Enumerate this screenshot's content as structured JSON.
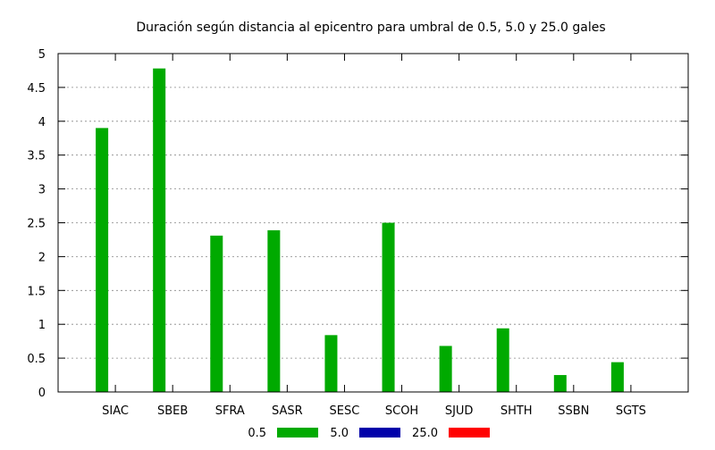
{
  "chart_data": {
    "type": "bar",
    "title": "Duración según distancia al epicentro para umbral de 0.5, 5.0 y 25.0 gales",
    "xlabel": "",
    "ylabel": "",
    "ylim": [
      0,
      5
    ],
    "yticks": [
      "0",
      "0.5",
      "1",
      "1.5",
      "2",
      "2.5",
      "3",
      "3.5",
      "4",
      "4.5",
      "5"
    ],
    "categories": [
      "SIAC",
      "SBEB",
      "SFRA",
      "SASR",
      "SESC",
      "SCOH",
      "SJUD",
      "SHTH",
      "SSBN",
      "SGTS"
    ],
    "series": [
      {
        "name": "0.5",
        "color": "#00aa00",
        "values": [
          3.9,
          4.78,
          2.31,
          2.39,
          0.84,
          2.5,
          0.68,
          0.94,
          0.25,
          0.44
        ]
      },
      {
        "name": "5.0",
        "color": "#0000aa",
        "values": [
          0,
          0,
          0,
          0,
          0,
          0,
          0,
          0,
          0,
          0
        ]
      },
      {
        "name": "25.0",
        "color": "#ff0000",
        "values": [
          0,
          0,
          0,
          0,
          0,
          0,
          0,
          0,
          0,
          0
        ]
      }
    ],
    "grid": true,
    "legend_position": "bottom"
  }
}
